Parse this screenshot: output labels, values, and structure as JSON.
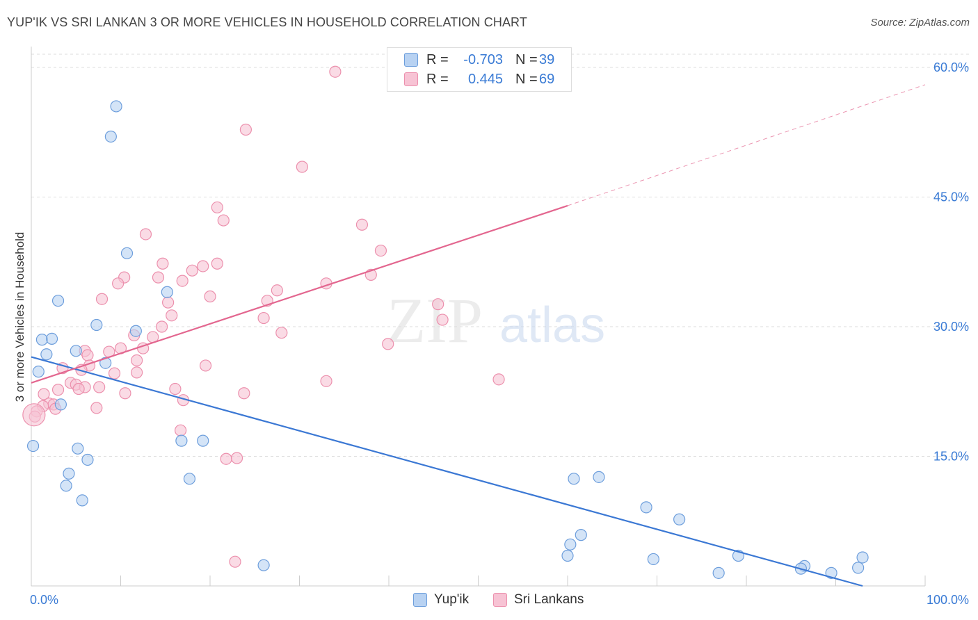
{
  "title": "YUP'IK VS SRI LANKAN 3 OR MORE VEHICLES IN HOUSEHOLD CORRELATION CHART",
  "source": "Source: ZipAtlas.com",
  "watermark": {
    "zip": "ZIP",
    "atlas": "atlas"
  },
  "colors": {
    "blue_fill": "#b8d2f2",
    "blue_stroke": "#6d9edc",
    "blue_line": "#3b78d4",
    "pink_fill": "#f7c3d4",
    "pink_stroke": "#ec90ad",
    "pink_line": "#e3668f",
    "value_text": "#3a7bd5"
  },
  "legend": {
    "rows": [
      {
        "r_label": "R =",
        "r_value": "-0.703",
        "n_label": "N =",
        "n_value": "39"
      },
      {
        "r_label": "R =",
        "r_value": "0.445",
        "n_label": "N =",
        "n_value": "69"
      }
    ]
  },
  "bottom_legend": {
    "series1": "Yup'ik",
    "series2": "Sri Lankans"
  },
  "chart_data": {
    "type": "scatter",
    "title": "YUP'IK VS SRI LANKAN 3 OR MORE VEHICLES IN HOUSEHOLD CORRELATION CHART",
    "xlabel": "",
    "ylabel": "3 or more Vehicles in Household",
    "xlim": [
      0,
      100
    ],
    "ylim": [
      0,
      60
    ],
    "x_tick_labels": [
      "0.0%",
      "100.0%"
    ],
    "y_ticks": [
      15,
      30,
      45,
      60
    ],
    "y_tick_labels": [
      "15.0%",
      "30.0%",
      "45.0%",
      "60.0%"
    ],
    "grid": true,
    "legend_position": "top-center",
    "series": [
      {
        "name": "Yup'ik",
        "r": -0.703,
        "n": 39,
        "trend": {
          "x": [
            0,
            93
          ],
          "y": [
            26.5,
            0
          ]
        },
        "points": [
          [
            9.5,
            55.5
          ],
          [
            8.9,
            52.0
          ],
          [
            10.7,
            38.5
          ],
          [
            3.0,
            33.0
          ],
          [
            15.2,
            34.0
          ],
          [
            7.3,
            30.2
          ],
          [
            11.7,
            29.5
          ],
          [
            1.2,
            28.5
          ],
          [
            2.3,
            28.6
          ],
          [
            1.7,
            26.8
          ],
          [
            5.0,
            27.2
          ],
          [
            8.3,
            25.8
          ],
          [
            0.8,
            24.8
          ],
          [
            3.3,
            21.0
          ],
          [
            0.2,
            16.2
          ],
          [
            5.2,
            15.9
          ],
          [
            6.3,
            14.6
          ],
          [
            16.8,
            16.8
          ],
          [
            19.2,
            16.8
          ],
          [
            4.2,
            13.0
          ],
          [
            3.9,
            11.6
          ],
          [
            17.7,
            12.4
          ],
          [
            5.7,
            9.9
          ],
          [
            60.7,
            12.4
          ],
          [
            63.5,
            12.6
          ],
          [
            68.8,
            9.1
          ],
          [
            72.5,
            7.7
          ],
          [
            61.5,
            5.9
          ],
          [
            60.3,
            4.8
          ],
          [
            60.0,
            3.5
          ],
          [
            69.6,
            3.1
          ],
          [
            26.0,
            2.4
          ],
          [
            79.1,
            3.5
          ],
          [
            76.9,
            1.5
          ],
          [
            86.5,
            2.3
          ],
          [
            86.1,
            2.0
          ],
          [
            89.5,
            1.5
          ],
          [
            93.0,
            3.3
          ],
          [
            92.5,
            2.1
          ]
        ]
      },
      {
        "name": "Sri Lankans",
        "r": 0.445,
        "n": 69,
        "trend": {
          "x": [
            0,
            60
          ],
          "y": [
            23.5,
            44.0
          ],
          "dash_to": [
            100,
            58.0
          ]
        },
        "points": [
          [
            34.0,
            59.5
          ],
          [
            24.0,
            52.8
          ],
          [
            30.3,
            48.5
          ],
          [
            20.8,
            43.8
          ],
          [
            21.5,
            42.3
          ],
          [
            37.0,
            41.8
          ],
          [
            12.8,
            40.7
          ],
          [
            39.1,
            38.8
          ],
          [
            14.7,
            37.3
          ],
          [
            20.8,
            37.3
          ],
          [
            19.2,
            37.0
          ],
          [
            18.0,
            36.5
          ],
          [
            10.4,
            35.7
          ],
          [
            14.2,
            35.7
          ],
          [
            38.0,
            36.0
          ],
          [
            9.7,
            35.0
          ],
          [
            16.9,
            35.3
          ],
          [
            33.0,
            35.0
          ],
          [
            27.5,
            34.2
          ],
          [
            20.0,
            33.5
          ],
          [
            7.9,
            33.2
          ],
          [
            15.3,
            32.8
          ],
          [
            26.4,
            33.0
          ],
          [
            45.5,
            32.6
          ],
          [
            15.7,
            31.3
          ],
          [
            26.0,
            31.0
          ],
          [
            46.0,
            30.8
          ],
          [
            14.6,
            30.0
          ],
          [
            28.0,
            29.3
          ],
          [
            11.5,
            29.0
          ],
          [
            13.6,
            28.8
          ],
          [
            39.9,
            28.0
          ],
          [
            10.0,
            27.5
          ],
          [
            12.5,
            27.5
          ],
          [
            6.0,
            27.2
          ],
          [
            8.7,
            27.1
          ],
          [
            6.3,
            26.7
          ],
          [
            11.8,
            26.1
          ],
          [
            3.5,
            25.2
          ],
          [
            6.5,
            25.5
          ],
          [
            19.5,
            25.5
          ],
          [
            5.6,
            25.0
          ],
          [
            9.3,
            24.6
          ],
          [
            11.8,
            24.7
          ],
          [
            52.3,
            23.9
          ],
          [
            33.0,
            23.7
          ],
          [
            4.4,
            23.5
          ],
          [
            5.0,
            23.3
          ],
          [
            6.0,
            23.0
          ],
          [
            7.6,
            23.0
          ],
          [
            5.3,
            22.8
          ],
          [
            3.0,
            22.7
          ],
          [
            16.1,
            22.8
          ],
          [
            10.5,
            22.3
          ],
          [
            23.8,
            22.3
          ],
          [
            1.4,
            22.2
          ],
          [
            17.0,
            21.5
          ],
          [
            2.0,
            21.1
          ],
          [
            2.5,
            21.0
          ],
          [
            1.3,
            20.8
          ],
          [
            7.3,
            20.6
          ],
          [
            2.7,
            20.5
          ],
          [
            0.6,
            20.2
          ],
          [
            0.4,
            19.6
          ],
          [
            16.7,
            18.0
          ],
          [
            21.8,
            14.7
          ],
          [
            23.0,
            14.8
          ],
          [
            22.8,
            2.8
          ],
          [
            0.3,
            19.8
          ]
        ]
      }
    ]
  }
}
